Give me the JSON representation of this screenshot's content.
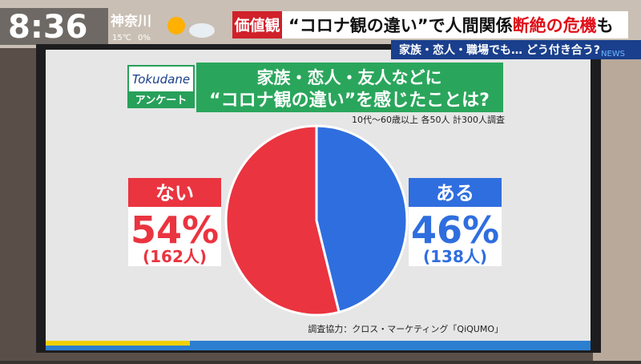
{
  "broadcast": {
    "time": "8:36",
    "place": "神奈川",
    "temp": "15℃",
    "rain": "0%",
    "tag": "価値観",
    "headline": [
      "“コロナ観の違い”で人間関係",
      "断絶の危機",
      "も"
    ],
    "subline": "家族・恋人・職場でも… どう付き合う?",
    "news": "NEWS"
  },
  "chart_data": {
    "type": "pie",
    "logo": "Tokudane",
    "logo_sub": "アンケート",
    "title": [
      "家族・恋人・友人などに",
      "“コロナ観の違い”を感じたことは?"
    ],
    "subtitle": "10代～60歳以上 各50人 計300人調査",
    "source": "調査協力：クロス・マーケティング「QiQUMO」",
    "categories": [
      "ある",
      "ない"
    ],
    "values": [
      46,
      54
    ],
    "value_labels": [
      "46%",
      "54%"
    ],
    "count_labels": [
      "(138人)",
      "(162人)"
    ],
    "colors": [
      "#2f6ede",
      "#ea3440"
    ]
  }
}
